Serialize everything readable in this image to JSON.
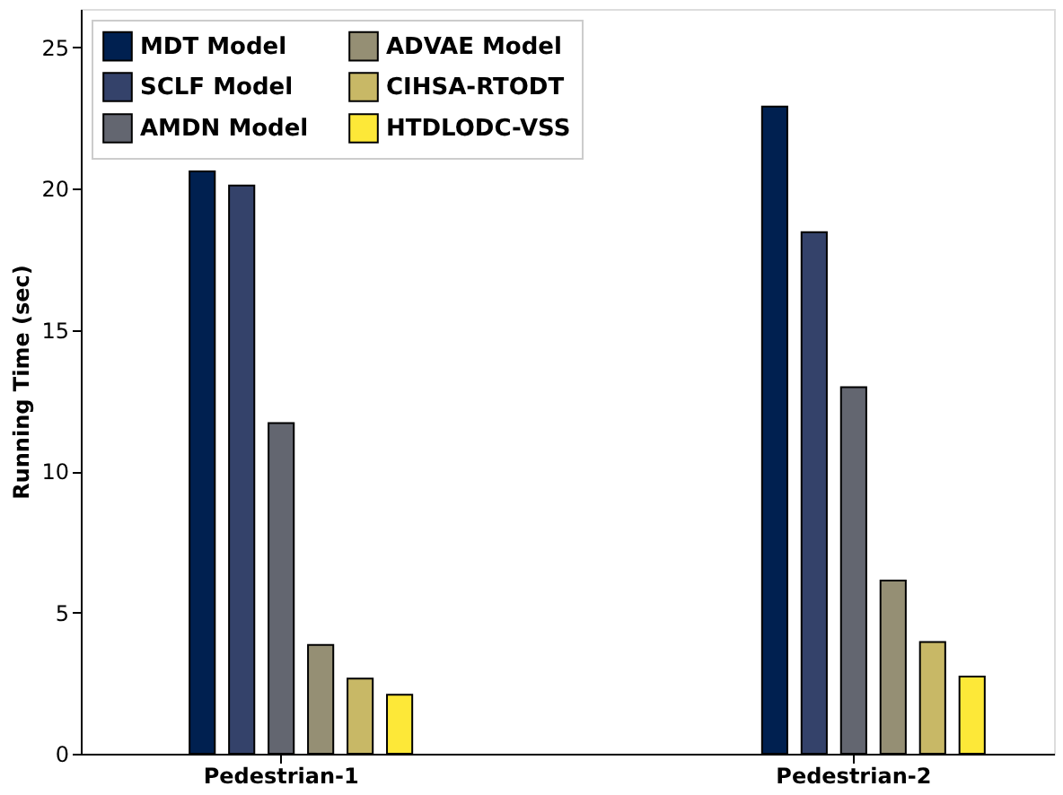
{
  "chart_data": {
    "type": "bar",
    "ylabel": "Running Time (sec)",
    "categories": [
      "Pedestrian-1",
      "Pedestrian-2"
    ],
    "series": [
      {
        "name": "MDT Model",
        "color": "#002050",
        "values": [
          20.6,
          22.9
        ]
      },
      {
        "name": "SCLF Model",
        "color": "#34426a",
        "values": [
          20.1,
          18.45
        ]
      },
      {
        "name": "AMDN Model",
        "color": "#636670",
        "values": [
          11.7,
          12.97
        ]
      },
      {
        "name": "ADVAE Model",
        "color": "#958f74",
        "values": [
          3.85,
          6.13
        ]
      },
      {
        "name": "CIHSA-RTODT",
        "color": "#c8b866",
        "values": [
          2.66,
          3.95
        ]
      },
      {
        "name": "HTDLODC-VSS",
        "color": "#fde838",
        "values": [
          2.09,
          2.73
        ]
      }
    ],
    "ylim": [
      0,
      26.35
    ],
    "yticks": [
      0,
      5,
      10,
      15,
      20,
      25
    ],
    "grid": false,
    "legend": "top left"
  }
}
